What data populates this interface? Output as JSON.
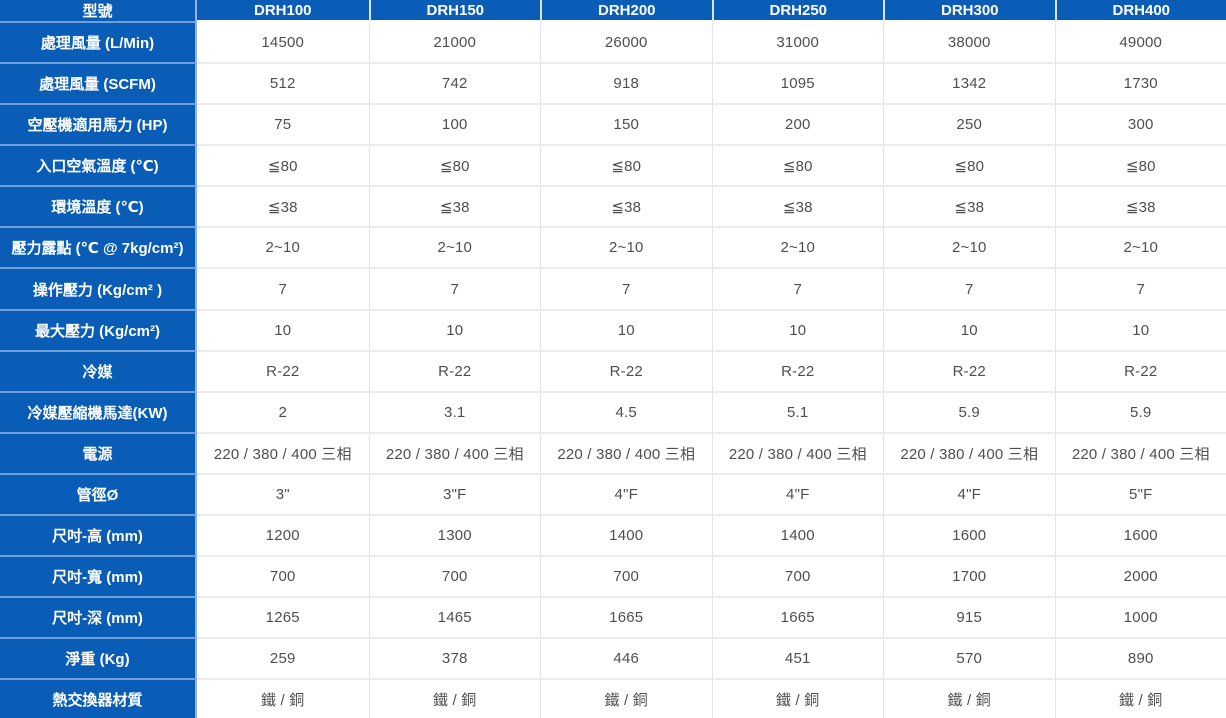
{
  "colors": {
    "header_blue": "#0a5db6",
    "label_separator_blue": "#6f9fd4",
    "label_right_border_blue": "#8fb7e2",
    "data_border_gray": "#e4e4e4",
    "value_text_gray": "#4f4f4f",
    "header_text": "#ffffff"
  },
  "table": {
    "corner_label": "型號",
    "models": [
      "DRH100",
      "DRH150",
      "DRH200",
      "DRH250",
      "DRH300",
      "DRH400"
    ],
    "rows": [
      {
        "label": "處理風量 (L/Min)",
        "values": [
          "14500",
          "21000",
          "26000",
          "31000",
          "38000",
          "49000"
        ]
      },
      {
        "label": "處理風量 (SCFM)",
        "values": [
          "512",
          "742",
          "918",
          "1095",
          "1342",
          "1730"
        ]
      },
      {
        "label": "空壓機適用馬力 (HP)",
        "values": [
          "75",
          "100",
          "150",
          "200",
          "250",
          "300"
        ]
      },
      {
        "label": "入口空氣溫度 (℃)",
        "values": [
          "≦80",
          "≦80",
          "≦80",
          "≦80",
          "≦80",
          "≦80"
        ]
      },
      {
        "label": "環境溫度 (℃)",
        "values": [
          "≦38",
          "≦38",
          "≦38",
          "≦38",
          "≦38",
          "≦38"
        ]
      },
      {
        "label": "壓力露點 (℃ @ 7kg/cm²)",
        "values": [
          "2~10",
          "2~10",
          "2~10",
          "2~10",
          "2~10",
          "2~10"
        ]
      },
      {
        "label": "操作壓力 (Kg/cm² )",
        "values": [
          "7",
          "7",
          "7",
          "7",
          "7",
          "7"
        ]
      },
      {
        "label": "最大壓力 (Kg/cm²)",
        "values": [
          "10",
          "10",
          "10",
          "10",
          "10",
          "10"
        ]
      },
      {
        "label": "冷媒",
        "values": [
          "R-22",
          "R-22",
          "R-22",
          "R-22",
          "R-22",
          "R-22"
        ]
      },
      {
        "label": "冷媒壓縮機馬達(KW)",
        "values": [
          "2",
          "3.1",
          "4.5",
          "5.1",
          "5.9",
          "5.9"
        ]
      },
      {
        "label": "電源",
        "values": [
          "220 / 380 / 400 三相",
          "220 / 380 / 400 三相",
          "220 / 380 / 400 三相",
          "220 / 380 / 400 三相",
          "220 / 380 / 400 三相",
          "220 / 380 / 400 三相"
        ]
      },
      {
        "label": "管徑Ø",
        "values": [
          "3\"",
          "3\"F",
          "4\"F",
          "4\"F",
          "4\"F",
          "5\"F"
        ]
      },
      {
        "label": "尺吋-高 (mm)",
        "values": [
          "1200",
          "1300",
          "1400",
          "1400",
          "1600",
          "1600"
        ]
      },
      {
        "label": "尺吋-寬 (mm)",
        "values": [
          "700",
          "700",
          "700",
          "700",
          "1700",
          "2000"
        ]
      },
      {
        "label": "尺吋-深 (mm)",
        "values": [
          "1265",
          "1465",
          "1665",
          "1665",
          "915",
          "1000"
        ]
      },
      {
        "label": "淨重 (Kg)",
        "values": [
          "259",
          "378",
          "446",
          "451",
          "570",
          "890"
        ]
      },
      {
        "label": "熱交換器材質",
        "values": [
          "鐵 / 銅",
          "鐵 / 銅",
          "鐵 / 銅",
          "鐵 / 銅",
          "鐵 / 銅",
          "鐵 / 銅"
        ]
      }
    ]
  }
}
